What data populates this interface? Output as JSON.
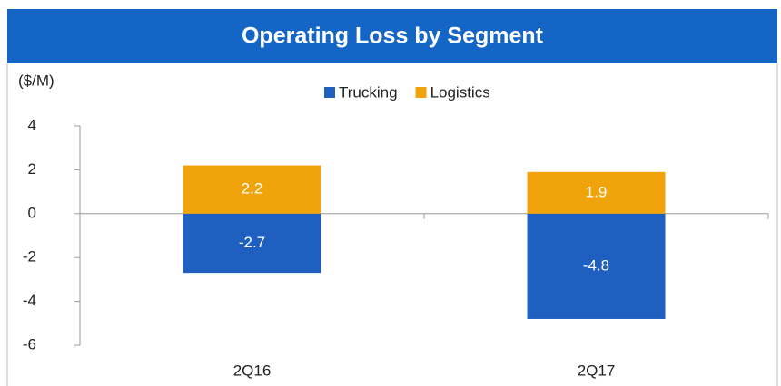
{
  "chart_data": {
    "type": "bar",
    "stacked": true,
    "title": "Operating Loss by Segment",
    "ylabel": "($/M)",
    "categories": [
      "2Q16",
      "2Q17"
    ],
    "series": [
      {
        "name": "Trucking",
        "color": "#1f5fc0",
        "values": [
          -2.7,
          -4.8
        ]
      },
      {
        "name": "Logistics",
        "color": "#f0a30a",
        "values": [
          2.2,
          1.9
        ]
      }
    ],
    "ylim": [
      -6,
      4
    ],
    "yticks": [
      -6,
      -4,
      -2,
      0,
      2,
      4
    ],
    "legend": "top"
  }
}
